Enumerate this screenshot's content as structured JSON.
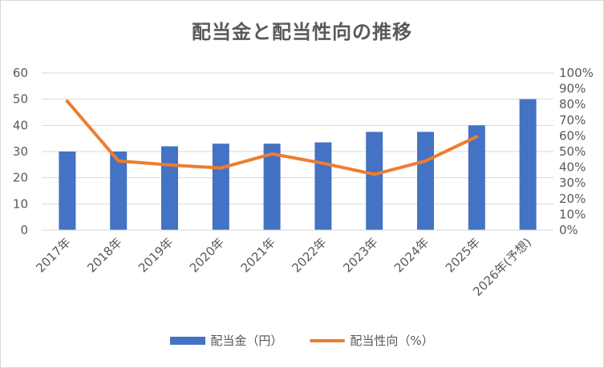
{
  "chart_data": {
    "type": "bar",
    "title": "配当金と配当性向の推移",
    "categories": [
      "2017年",
      "2018年",
      "2019年",
      "2020年",
      "2021年",
      "2022年",
      "2023年",
      "2024年",
      "2025年",
      "2026年(予想)"
    ],
    "series": [
      {
        "name": "配当金（円）",
        "type": "bar",
        "axis": "left",
        "color": "#4472c4",
        "values": [
          30,
          30,
          32,
          33,
          33,
          33.5,
          37.5,
          37.5,
          40,
          50
        ]
      },
      {
        "name": "配当性向（%）",
        "type": "line",
        "axis": "right",
        "color": "#ed7d31",
        "values": [
          82,
          44,
          41.5,
          39.5,
          48.5,
          42.5,
          35.5,
          44,
          59.5,
          null
        ]
      }
    ],
    "y_left": {
      "min": 0,
      "max": 60,
      "step": 10,
      "ticks": [
        "0",
        "10",
        "20",
        "30",
        "40",
        "50",
        "60"
      ]
    },
    "y_right": {
      "min": 0,
      "max": 100,
      "step": 10,
      "ticks": [
        "0%",
        "10%",
        "20%",
        "30%",
        "40%",
        "50%",
        "60%",
        "70%",
        "80%",
        "90%",
        "100%"
      ]
    },
    "grid": true,
    "legend_position": "bottom"
  }
}
